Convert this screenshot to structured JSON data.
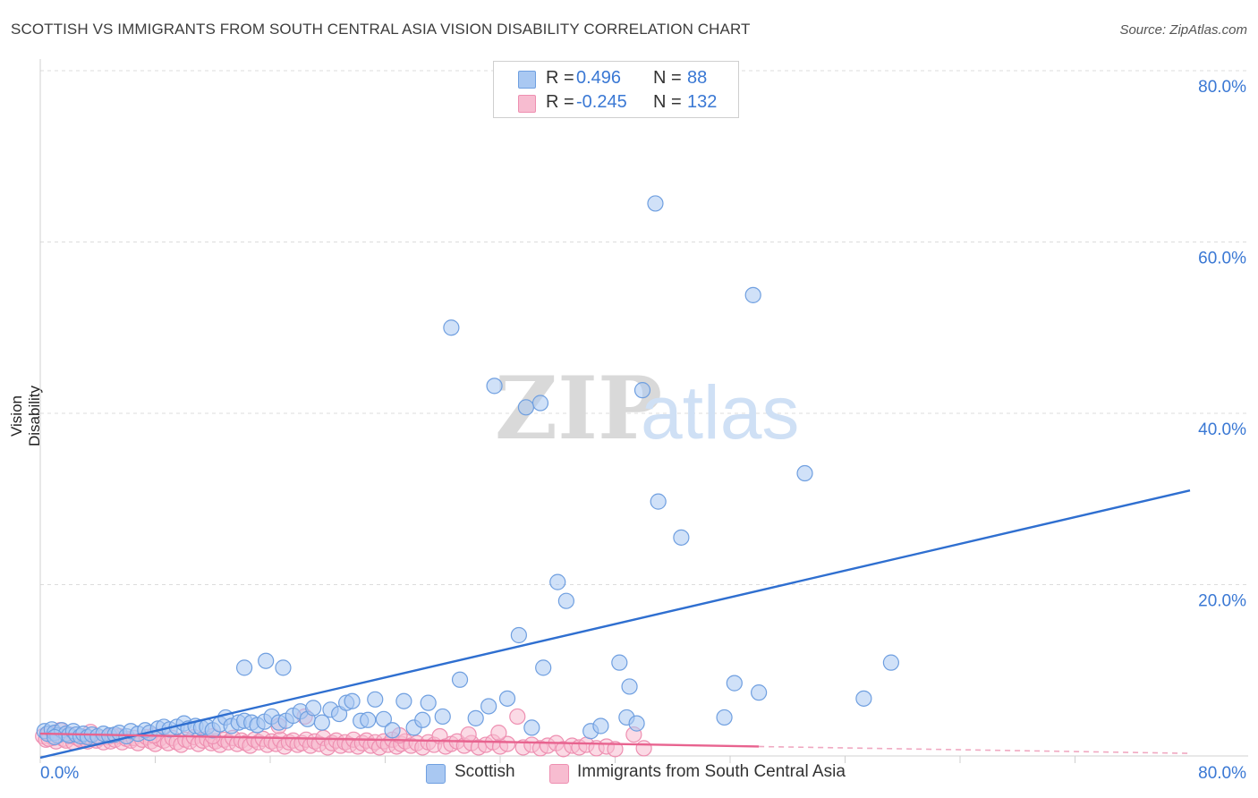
{
  "title": "SCOTTISH VS IMMIGRANTS FROM SOUTH CENTRAL ASIA VISION DISABILITY CORRELATION CHART",
  "source": "Source: ZipAtlas.com",
  "watermark": {
    "zip": "ZIP",
    "atlas": "atlas"
  },
  "legend": {
    "r_label": "R =",
    "n_label": "N =",
    "series": [
      {
        "name": "Scottish",
        "r": "0.496",
        "n": "88",
        "color": "#a9c8f2",
        "stroke": "#6f9fe0",
        "text_color": "#3a78d4"
      },
      {
        "name": "Immigrants from South Central Asia",
        "r": "-0.245",
        "n": "132",
        "color": "#f7bcd0",
        "stroke": "#ee8fb1",
        "text_color": "#3a78d4"
      }
    ]
  },
  "chart_data": {
    "type": "scatter",
    "title": "SCOTTISH VS IMMIGRANTS FROM SOUTH CENTRAL ASIA VISION DISABILITY CORRELATION CHART",
    "xlabel": "",
    "ylabel": "Vision Disability",
    "xlim": [
      0,
      80
    ],
    "ylim": [
      0,
      80
    ],
    "x_tick_labels": [
      "0.0%",
      "80.0%"
    ],
    "y_tick_labels": [
      "20.0%",
      "40.0%",
      "60.0%",
      "80.0%"
    ],
    "y_ticks": [
      20,
      40,
      60,
      80
    ],
    "grid": true,
    "series": [
      {
        "name": "Scottish",
        "color": "#6f9fe0",
        "fill": "#a9c8f2",
        "points": [
          [
            0.3,
            2.9
          ],
          [
            0.5,
            2.6
          ],
          [
            0.8,
            3.1
          ],
          [
            1.0,
            2.7
          ],
          [
            1.2,
            2.4
          ],
          [
            1.5,
            3.0
          ],
          [
            1.8,
            2.6
          ],
          [
            2.0,
            2.4
          ],
          [
            2.3,
            2.9
          ],
          [
            2.5,
            2.5
          ],
          [
            2.8,
            2.3
          ],
          [
            3.0,
            2.6
          ],
          [
            3.3,
            2.2
          ],
          [
            3.6,
            2.5
          ],
          [
            4.0,
            2.3
          ],
          [
            4.4,
            2.6
          ],
          [
            4.8,
            2.4
          ],
          [
            5.2,
            2.5
          ],
          [
            5.5,
            2.7
          ],
          [
            6.0,
            2.3
          ],
          [
            6.3,
            2.9
          ],
          [
            6.8,
            2.6
          ],
          [
            7.3,
            3.0
          ],
          [
            7.6,
            2.7
          ],
          [
            8.2,
            3.2
          ],
          [
            8.6,
            3.4
          ],
          [
            9.0,
            3.1
          ],
          [
            9.5,
            3.4
          ],
          [
            10.0,
            3.8
          ],
          [
            10.3,
            3.2
          ],
          [
            10.8,
            3.5
          ],
          [
            11.2,
            3.3
          ],
          [
            11.6,
            3.4
          ],
          [
            12.0,
            3.0
          ],
          [
            12.5,
            3.7
          ],
          [
            12.9,
            4.5
          ],
          [
            13.3,
            3.5
          ],
          [
            13.8,
            3.9
          ],
          [
            14.2,
            4.1
          ],
          [
            14.7,
            3.9
          ],
          [
            15.1,
            3.6
          ],
          [
            15.6,
            4.0
          ],
          [
            16.1,
            4.6
          ],
          [
            16.6,
            3.9
          ],
          [
            17.1,
            4.1
          ],
          [
            17.6,
            4.7
          ],
          [
            18.1,
            5.2
          ],
          [
            18.6,
            4.3
          ],
          [
            19.0,
            5.6
          ],
          [
            19.6,
            3.9
          ],
          [
            20.2,
            5.4
          ],
          [
            20.8,
            4.9
          ],
          [
            21.3,
            6.2
          ],
          [
            21.7,
            6.4
          ],
          [
            22.3,
            4.1
          ],
          [
            22.8,
            4.2
          ],
          [
            23.3,
            6.6
          ],
          [
            23.9,
            4.3
          ],
          [
            24.5,
            3.0
          ],
          [
            25.3,
            6.4
          ],
          [
            26.0,
            3.3
          ],
          [
            27.0,
            6.2
          ],
          [
            28.0,
            4.6
          ],
          [
            29.2,
            8.9
          ],
          [
            30.3,
            4.4
          ],
          [
            31.2,
            5.8
          ],
          [
            32.5,
            6.7
          ],
          [
            34.2,
            3.3
          ],
          [
            35.0,
            10.3
          ],
          [
            36.0,
            20.3
          ],
          [
            38.3,
            2.9
          ],
          [
            39.0,
            3.5
          ],
          [
            40.3,
            10.9
          ],
          [
            40.8,
            4.5
          ],
          [
            41.0,
            8.1
          ],
          [
            41.5,
            3.8
          ],
          [
            41.9,
            42.7
          ],
          [
            42.8,
            64.5
          ],
          [
            43.0,
            29.7
          ],
          [
            44.6,
            25.5
          ],
          [
            34.8,
            41.2
          ],
          [
            33.8,
            40.7
          ],
          [
            31.6,
            43.2
          ],
          [
            28.6,
            50.0
          ],
          [
            47.6,
            4.5
          ],
          [
            48.3,
            8.5
          ],
          [
            49.6,
            53.8
          ],
          [
            50.0,
            7.4
          ],
          [
            53.2,
            33.0
          ],
          [
            57.3,
            6.7
          ],
          [
            59.2,
            10.9
          ],
          [
            36.6,
            18.1
          ],
          [
            33.3,
            14.1
          ],
          [
            16.9,
            10.3
          ],
          [
            14.2,
            10.3
          ],
          [
            15.7,
            11.1
          ],
          [
            26.6,
            4.2
          ],
          [
            1.0,
            2.2
          ]
        ],
        "trend": [
          [
            0,
            -0.2
          ],
          [
            80,
            31.0
          ]
        ]
      },
      {
        "name": "Immigrants from South Central Asia",
        "color": "#ee8fb1",
        "fill": "#f7bcd0",
        "points": [
          [
            0.2,
            2.3
          ],
          [
            0.4,
            1.9
          ],
          [
            0.6,
            2.6
          ],
          [
            0.9,
            2.1
          ],
          [
            1.1,
            1.7
          ],
          [
            1.3,
            2.4
          ],
          [
            1.6,
            2.0
          ],
          [
            1.8,
            1.8
          ],
          [
            2.1,
            2.3
          ],
          [
            2.3,
            1.6
          ],
          [
            2.6,
            2.1
          ],
          [
            2.8,
            1.9
          ],
          [
            3.1,
            2.2
          ],
          [
            3.3,
            1.7
          ],
          [
            3.6,
            2.0
          ],
          [
            3.9,
            1.8
          ],
          [
            4.1,
            2.1
          ],
          [
            4.4,
            1.6
          ],
          [
            4.7,
            2.2
          ],
          [
            4.9,
            1.7
          ],
          [
            5.2,
            1.9
          ],
          [
            5.5,
            2.3
          ],
          [
            5.7,
            1.6
          ],
          [
            6.0,
            2.0
          ],
          [
            6.3,
            1.8
          ],
          [
            6.5,
            2.1
          ],
          [
            6.8,
            1.5
          ],
          [
            7.1,
            1.9
          ],
          [
            7.4,
            2.2
          ],
          [
            7.7,
            1.7
          ],
          [
            8.0,
            1.4
          ],
          [
            8.3,
            2.0
          ],
          [
            8.6,
            1.8
          ],
          [
            8.9,
            1.5
          ],
          [
            9.2,
            2.1
          ],
          [
            9.5,
            1.6
          ],
          [
            9.8,
            1.3
          ],
          [
            10.1,
            1.9
          ],
          [
            10.4,
            1.7
          ],
          [
            10.7,
            2.2
          ],
          [
            11.0,
            1.4
          ],
          [
            11.3,
            1.8
          ],
          [
            11.6,
            2.0
          ],
          [
            11.9,
            1.5
          ],
          [
            12.2,
            1.7
          ],
          [
            12.5,
            1.3
          ],
          [
            12.8,
            1.9
          ],
          [
            13.1,
            1.6
          ],
          [
            13.4,
            2.1
          ],
          [
            13.7,
            1.4
          ],
          [
            14.0,
            1.8
          ],
          [
            14.3,
            1.5
          ],
          [
            14.6,
            1.2
          ],
          [
            14.9,
            1.9
          ],
          [
            15.2,
            1.6
          ],
          [
            15.5,
            2.0
          ],
          [
            15.8,
            1.3
          ],
          [
            16.1,
            1.7
          ],
          [
            16.4,
            1.4
          ],
          [
            16.7,
            1.9
          ],
          [
            17.0,
            1.1
          ],
          [
            17.3,
            1.6
          ],
          [
            17.6,
            1.8
          ],
          [
            17.9,
            1.3
          ],
          [
            18.2,
            1.5
          ],
          [
            18.5,
            1.9
          ],
          [
            18.8,
            1.2
          ],
          [
            19.1,
            1.7
          ],
          [
            19.4,
            1.4
          ],
          [
            19.7,
            2.1
          ],
          [
            20.0,
            1.0
          ],
          [
            20.3,
            1.5
          ],
          [
            20.6,
            1.8
          ],
          [
            20.9,
            1.2
          ],
          [
            21.2,
            1.6
          ],
          [
            21.5,
            1.3
          ],
          [
            21.8,
            1.9
          ],
          [
            22.1,
            1.1
          ],
          [
            22.4,
            1.5
          ],
          [
            22.7,
            1.8
          ],
          [
            23.0,
            1.2
          ],
          [
            23.3,
            1.6
          ],
          [
            23.6,
            1.0
          ],
          [
            23.9,
            1.7
          ],
          [
            24.2,
            1.3
          ],
          [
            24.5,
            1.9
          ],
          [
            24.8,
            1.1
          ],
          [
            25.1,
            1.4
          ],
          [
            25.4,
            1.7
          ],
          [
            25.8,
            1.2
          ],
          [
            26.2,
            1.5
          ],
          [
            26.6,
            1.0
          ],
          [
            27.0,
            1.6
          ],
          [
            27.4,
            1.3
          ],
          [
            27.8,
            2.3
          ],
          [
            28.2,
            1.1
          ],
          [
            28.6,
            1.4
          ],
          [
            29.0,
            1.7
          ],
          [
            29.5,
            1.2
          ],
          [
            30.0,
            1.5
          ],
          [
            30.5,
            1.0
          ],
          [
            31.0,
            1.3
          ],
          [
            31.5,
            1.6
          ],
          [
            32.0,
            1.1
          ],
          [
            32.5,
            1.4
          ],
          [
            33.2,
            4.6
          ],
          [
            33.6,
            1.0
          ],
          [
            34.2,
            1.3
          ],
          [
            34.8,
            0.9
          ],
          [
            35.3,
            1.2
          ],
          [
            35.9,
            1.5
          ],
          [
            36.4,
            0.8
          ],
          [
            37.0,
            1.2
          ],
          [
            37.5,
            1.0
          ],
          [
            38.0,
            1.3
          ],
          [
            38.7,
            0.9
          ],
          [
            39.4,
            1.1
          ],
          [
            40.0,
            0.8
          ],
          [
            41.3,
            2.5
          ],
          [
            42.0,
            0.9
          ],
          [
            18.4,
            4.6
          ],
          [
            16.6,
            3.5
          ],
          [
            25.0,
            2.4
          ],
          [
            29.8,
            2.5
          ],
          [
            31.9,
            2.7
          ],
          [
            3.5,
            2.8
          ],
          [
            1.4,
            3.0
          ],
          [
            0.6,
            2.0
          ],
          [
            2.0,
            2.5
          ],
          [
            5.0,
            2.4
          ],
          [
            7.9,
            2.4
          ],
          [
            12.0,
            2.3
          ]
        ],
        "trend": [
          [
            0,
            2.6
          ],
          [
            50,
            1.1
          ]
        ],
        "trend_dashed_extension": [
          [
            50,
            1.1
          ],
          [
            80,
            0.3
          ]
        ]
      }
    ]
  }
}
